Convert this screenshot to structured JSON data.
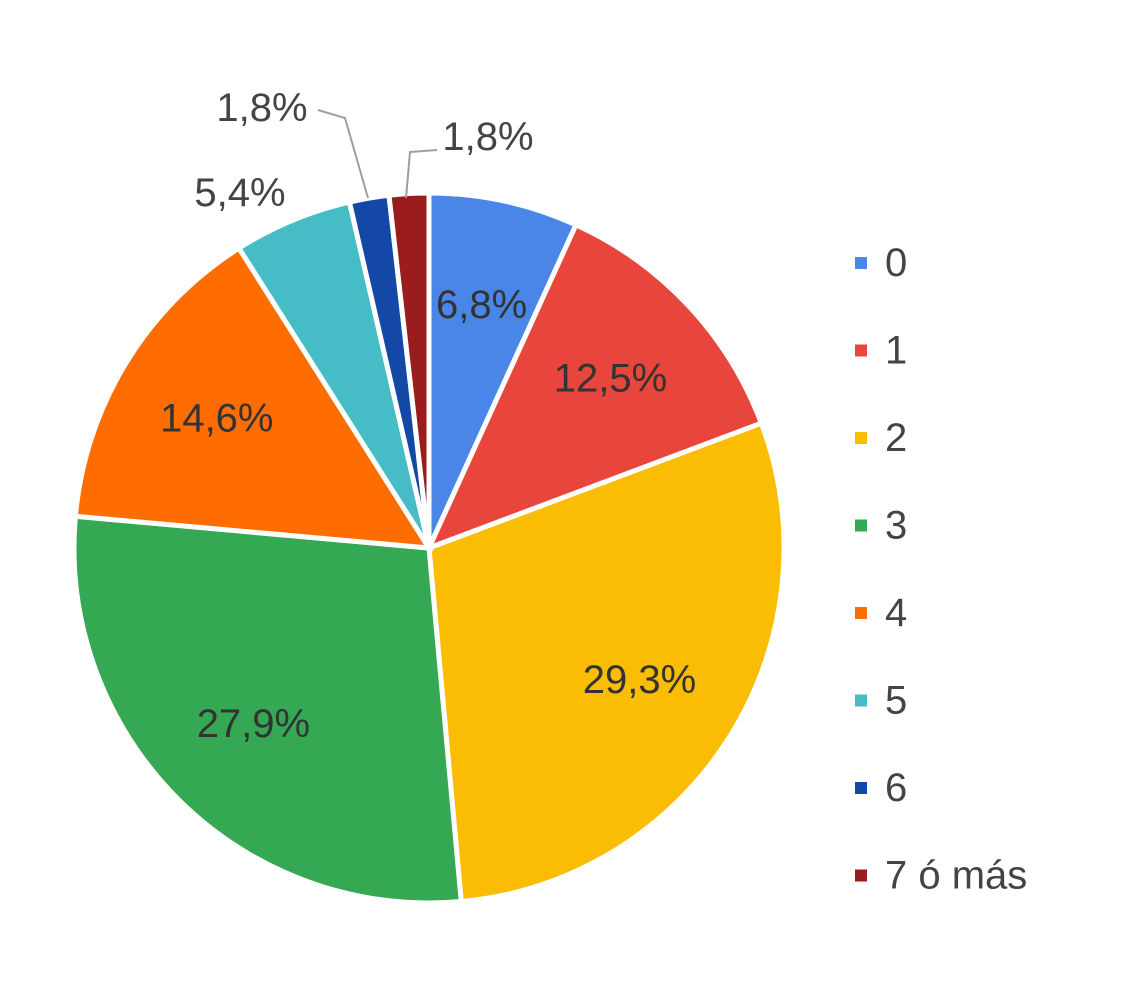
{
  "chart_data": {
    "type": "pie",
    "categories": [
      "0",
      "1",
      "2",
      "3",
      "4",
      "5",
      "6",
      "7 ó más"
    ],
    "values": [
      6.8,
      12.5,
      29.3,
      27.9,
      14.6,
      5.4,
      1.8,
      1.8
    ],
    "labels": [
      "6,8%",
      "12,5%",
      "29,3%",
      "27,9%",
      "14,6%",
      "5,4%",
      "1,8%",
      "1,8%"
    ],
    "colors": [
      "#4a86e8",
      "#e8453c",
      "#fbbc04",
      "#34a853",
      "#ff6d01",
      "#46bdc6",
      "#1448a6",
      "#9b1c1c"
    ],
    "start_angle_deg": 0,
    "direction": "clockwise",
    "legend_position": "right"
  }
}
